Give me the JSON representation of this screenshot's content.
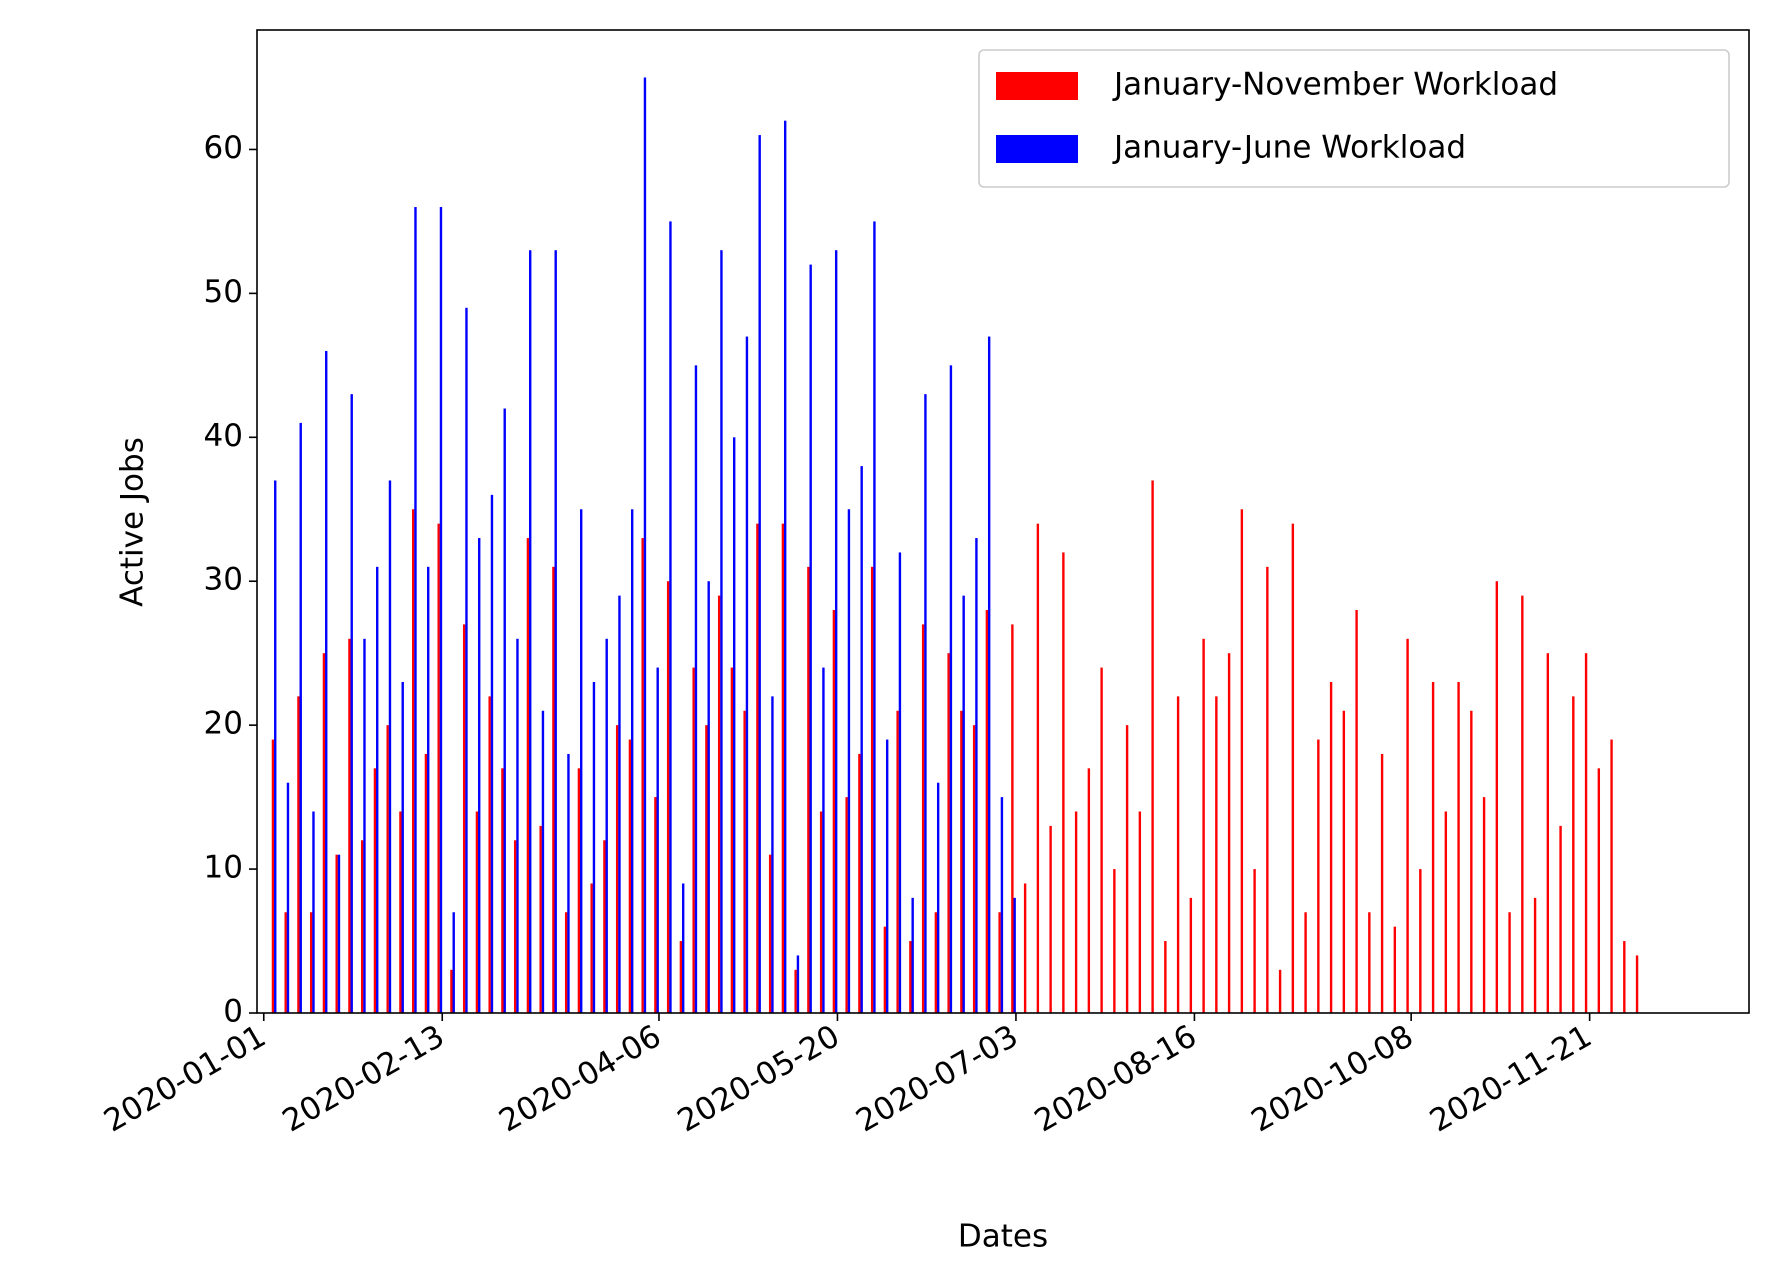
{
  "chart_data": {
    "type": "bar",
    "xlabel": "Dates",
    "ylabel": "Active Jobs",
    "xlim": [
      -0.53,
      116.5
    ],
    "xticks": [
      {
        "value": 0,
        "label": "2020-01-01"
      },
      {
        "value": 14,
        "label": "2020-02-13"
      },
      {
        "value": 31,
        "label": "2020-04-06"
      },
      {
        "value": 45,
        "label": "2020-05-20"
      },
      {
        "value": 59,
        "label": "2020-07-03"
      },
      {
        "value": 73,
        "label": "2020-08-16"
      },
      {
        "value": 90,
        "label": "2020-10-08"
      },
      {
        "value": 104,
        "label": "2020-11-21"
      }
    ],
    "ylim": [
      0,
      68.3
    ],
    "yticks": [
      0,
      10,
      20,
      30,
      40,
      50,
      60
    ],
    "legend": "upper right",
    "series": [
      {
        "name": "January-November Workload",
        "color": "#ff0000",
        "values": [
          19,
          7,
          22,
          7,
          25,
          11,
          26,
          12,
          17,
          20,
          14,
          35,
          18,
          34,
          3,
          27,
          14,
          22,
          17,
          12,
          33,
          13,
          31,
          7,
          17,
          9,
          12,
          20,
          19,
          33,
          15,
          30,
          5,
          24,
          20,
          29,
          24,
          21,
          34,
          11,
          34,
          3,
          31,
          14,
          28,
          15,
          18,
          31,
          6,
          21,
          5,
          27,
          7,
          25,
          21,
          20,
          28,
          7,
          27,
          9,
          34,
          13,
          32,
          14,
          17,
          24,
          10,
          20,
          14,
          37,
          5,
          22,
          8,
          26,
          22,
          25,
          35,
          10,
          31,
          3,
          34,
          7,
          19,
          23,
          21,
          28,
          7,
          18,
          6,
          26,
          10,
          23,
          14,
          23,
          21,
          15,
          30,
          7,
          29,
          8,
          25,
          13,
          22,
          25,
          17,
          19,
          5,
          4
        ]
      },
      {
        "name": "January-June Workload",
        "color": "#0000ff",
        "values": [
          37,
          16,
          41,
          14,
          46,
          11,
          43,
          26,
          31,
          37,
          23,
          56,
          31,
          56,
          7,
          49,
          33,
          36,
          42,
          26,
          53,
          21,
          53,
          18,
          35,
          23,
          26,
          29,
          35,
          65,
          24,
          55,
          9,
          45,
          30,
          53,
          40,
          47,
          61,
          22,
          62,
          4,
          52,
          24,
          53,
          35,
          38,
          55,
          19,
          32,
          8,
          43,
          16,
          45,
          29,
          33,
          47,
          15,
          8,
          null,
          null,
          null,
          null,
          null,
          null,
          null,
          null,
          null,
          null,
          null,
          null,
          null,
          null,
          null,
          null,
          null,
          null,
          null,
          null,
          null,
          null,
          null,
          null,
          null,
          null,
          null,
          null,
          null,
          null,
          null,
          null,
          null,
          null,
          null,
          null,
          null,
          null,
          null,
          null,
          null,
          null,
          null,
          null,
          null,
          null,
          null,
          null,
          null
        ]
      }
    ]
  }
}
